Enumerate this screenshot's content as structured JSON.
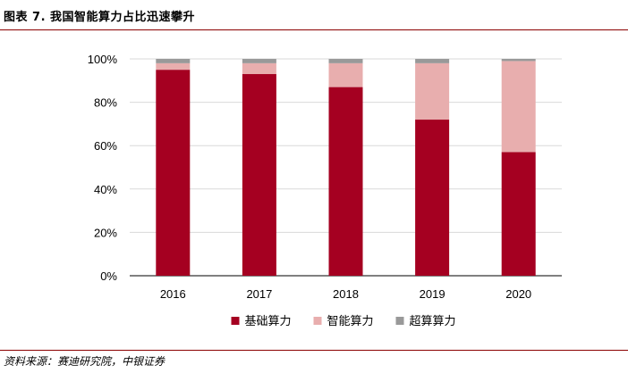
{
  "title": "图表 7. 我国智能算力占比迅速攀升",
  "source": "资料来源：赛迪研究院，中银证券",
  "chart_data": {
    "type": "bar",
    "stacked": true,
    "categories": [
      "2016",
      "2017",
      "2018",
      "2019",
      "2020"
    ],
    "series": [
      {
        "name": "基础算力",
        "color": "#A50021",
        "values": [
          95,
          93,
          87,
          72,
          57
        ]
      },
      {
        "name": "智能算力",
        "color": "#E8AEAE",
        "values": [
          3,
          5,
          11,
          26,
          42
        ]
      },
      {
        "name": "超算算力",
        "color": "#999999",
        "values": [
          2,
          2,
          2,
          2,
          1
        ]
      }
    ],
    "y_ticks": [
      "0%",
      "20%",
      "40%",
      "60%",
      "80%",
      "100%"
    ],
    "ylim": [
      0,
      100
    ],
    "grid": true,
    "legend_position": "bottom"
  }
}
